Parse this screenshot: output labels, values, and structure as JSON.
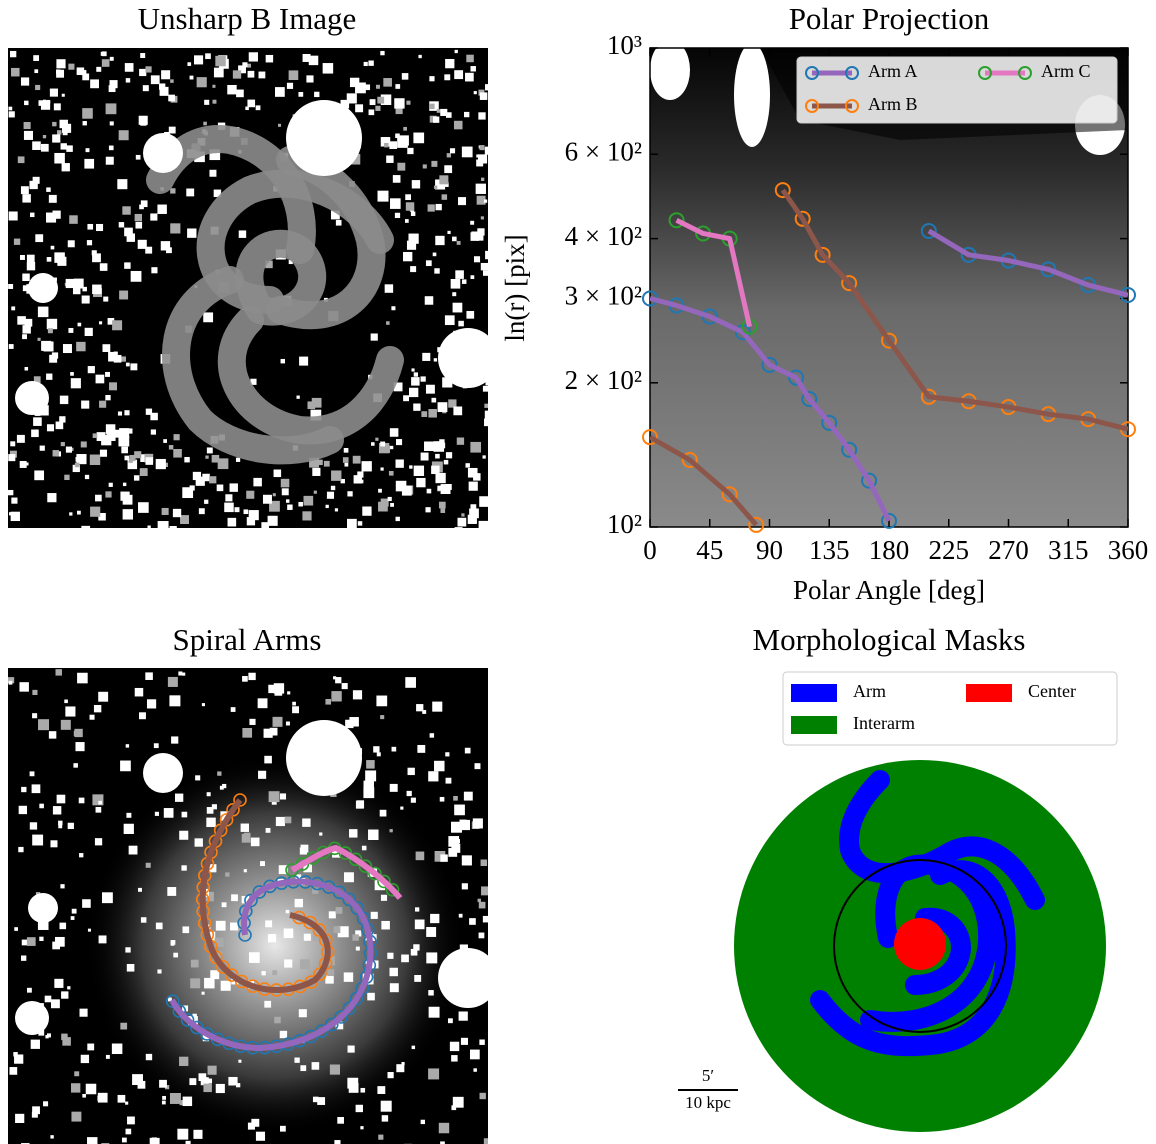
{
  "chart_data": [
    {
      "type": "image",
      "title": "Unsharp B Image"
    },
    {
      "type": "line",
      "title": "Polar Projection",
      "x_label": "Polar Angle [deg]",
      "y_label": "ln(r) [pix]",
      "xlim": [
        0,
        360
      ],
      "ylim": [
        100,
        1000
      ],
      "yscale": "log",
      "xticks": [
        0,
        45,
        90,
        135,
        180,
        225,
        270,
        315,
        360
      ],
      "yticks": [
        {
          "value": 100,
          "label": "10²"
        },
        {
          "value": 200,
          "label": "2 × 10²"
        },
        {
          "value": 300,
          "label": "3 × 10²"
        },
        {
          "value": 400,
          "label": "4 × 10²"
        },
        {
          "value": 600,
          "label": "6 × 10²"
        },
        {
          "value": 1000,
          "label": "10³"
        }
      ],
      "legend": "upper right",
      "legend_columns": 2,
      "series": [
        {
          "name": "Arm A",
          "color": "#1f77b4",
          "line_color": "#9467bd",
          "x": [
            0,
            20,
            45,
            70,
            90,
            110,
            120,
            135,
            150,
            165,
            180,
            null,
            210,
            240,
            270,
            300,
            330,
            360
          ],
          "values": [
            300,
            290,
            275,
            255,
            218,
            205,
            185,
            165,
            145,
            125,
            103,
            null,
            415,
            370,
            360,
            345,
            320,
            305
          ]
        },
        {
          "name": "Arm B",
          "color": "#ff7f0e",
          "line_color": "#8c564b",
          "x": [
            0,
            30,
            60,
            80,
            null,
            100,
            115,
            130,
            150,
            180,
            210,
            240,
            270,
            300,
            330,
            360
          ],
          "values": [
            154,
            138,
            117,
            101,
            null,
            505,
            440,
            370,
            323,
            245,
            187,
            183,
            178,
            172,
            168,
            160
          ]
        },
        {
          "name": "Arm C",
          "color": "#2ca02c",
          "line_color": "#e377c2",
          "x": [
            20,
            40,
            60,
            75
          ],
          "values": [
            437,
            410,
            400,
            262
          ]
        }
      ]
    },
    {
      "type": "image",
      "title": "Spiral Arms"
    },
    {
      "type": "image",
      "title": "Morphological Masks",
      "legend_entries": [
        {
          "name": "Arm",
          "color": "#0000ff"
        },
        {
          "name": "Interarm",
          "color": "#008000"
        },
        {
          "name": "Center",
          "color": "#ff0000"
        }
      ],
      "scale_bar": {
        "top": "5′",
        "bottom": "10 kpc"
      }
    }
  ]
}
